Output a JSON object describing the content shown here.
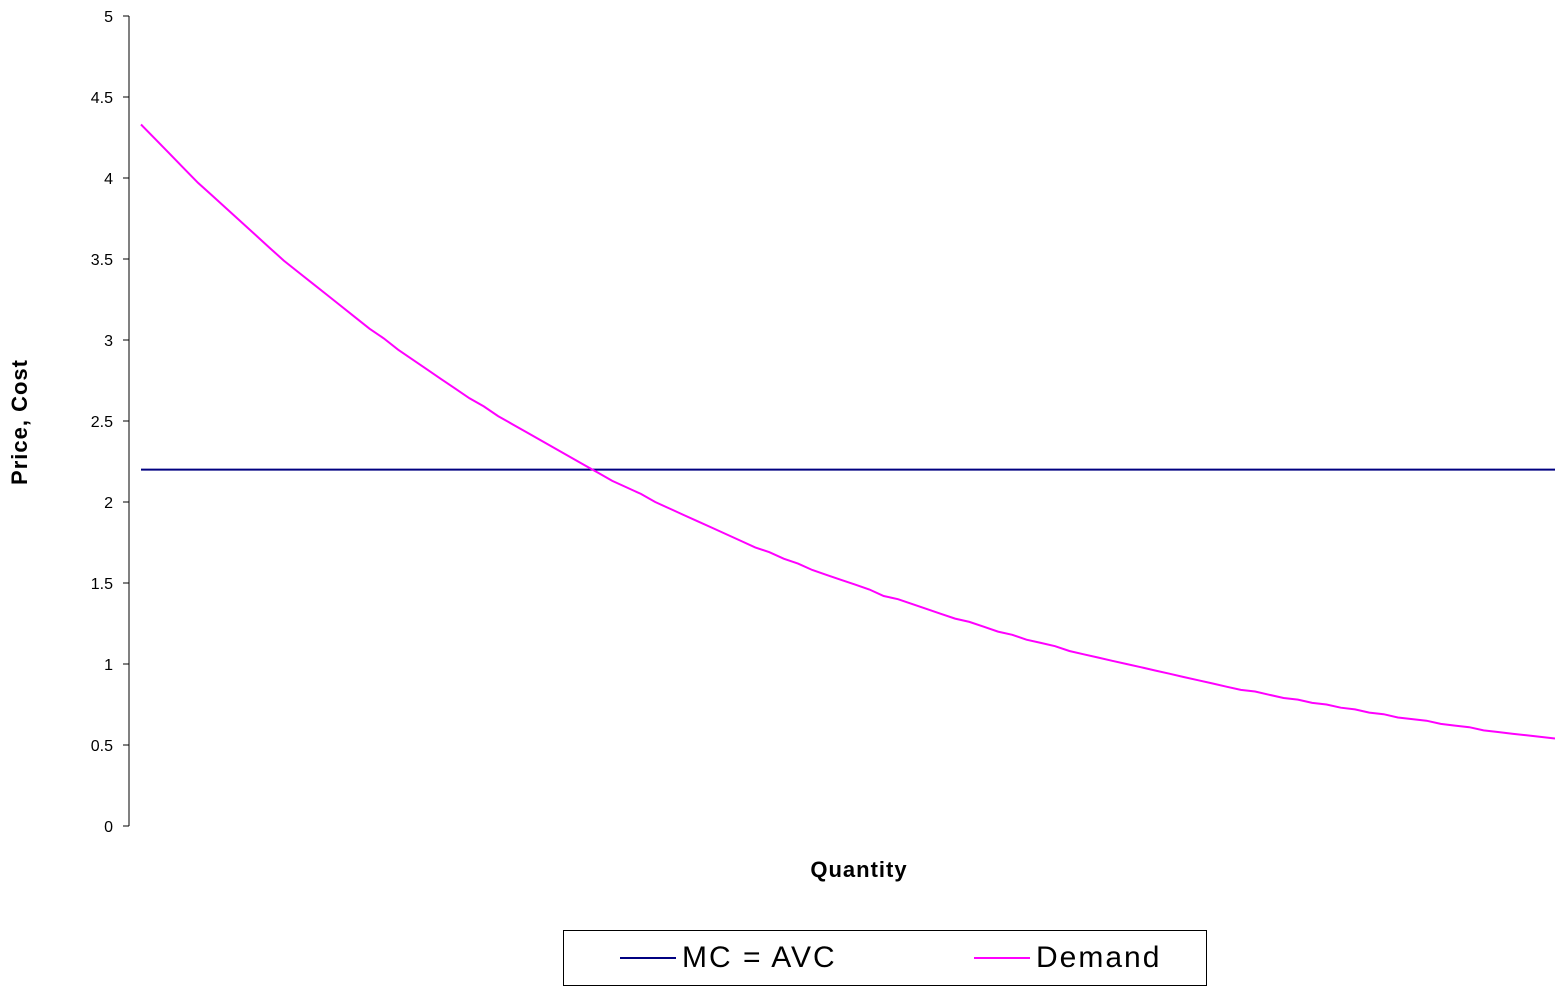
{
  "chart_data": {
    "type": "line",
    "title": "",
    "xlabel": "Quantity",
    "ylabel": "Price, Cost",
    "ylim": [
      0,
      5
    ],
    "yticks": [
      "0",
      "0.5",
      "1",
      "1.5",
      "2",
      "2.5",
      "3",
      "3.5",
      "4",
      "4.5",
      "5"
    ],
    "x": [
      1,
      2,
      3,
      4,
      5,
      6,
      7,
      8,
      9,
      10,
      11,
      12,
      13,
      14,
      15,
      16,
      17,
      18,
      19,
      20,
      21,
      22,
      23,
      24,
      25,
      26,
      27,
      28,
      29,
      30,
      31,
      32,
      33,
      34,
      35,
      36,
      37,
      38,
      39,
      40,
      41,
      42,
      43,
      44,
      45,
      46,
      47,
      48,
      49,
      50,
      51,
      52,
      53,
      54,
      55,
      56,
      57,
      58,
      59,
      60,
      61,
      62,
      63,
      64,
      65,
      66,
      67,
      68,
      69,
      70,
      71,
      72,
      73,
      74,
      75,
      76,
      77,
      78,
      79,
      80,
      81,
      82,
      83,
      84,
      85,
      86,
      87,
      88,
      89,
      90,
      91,
      92,
      93,
      94,
      95,
      96,
      97,
      98,
      99,
      100
    ],
    "grid": false,
    "legend_position": "bottom",
    "series": [
      {
        "name": "MC = AVC",
        "color": "#000080",
        "values": [
          2.2,
          2.2,
          2.2,
          2.2,
          2.2,
          2.2,
          2.2,
          2.2,
          2.2,
          2.2,
          2.2,
          2.2,
          2.2,
          2.2,
          2.2,
          2.2,
          2.2,
          2.2,
          2.2,
          2.2,
          2.2,
          2.2,
          2.2,
          2.2,
          2.2,
          2.2,
          2.2,
          2.2,
          2.2,
          2.2,
          2.2,
          2.2,
          2.2,
          2.2,
          2.2,
          2.2,
          2.2,
          2.2,
          2.2,
          2.2,
          2.2,
          2.2,
          2.2,
          2.2,
          2.2,
          2.2,
          2.2,
          2.2,
          2.2,
          2.2,
          2.2,
          2.2,
          2.2,
          2.2,
          2.2,
          2.2,
          2.2,
          2.2,
          2.2,
          2.2,
          2.2,
          2.2,
          2.2,
          2.2,
          2.2,
          2.2,
          2.2,
          2.2,
          2.2,
          2.2,
          2.2,
          2.2,
          2.2,
          2.2,
          2.2,
          2.2,
          2.2,
          2.2,
          2.2,
          2.2,
          2.2,
          2.2,
          2.2,
          2.2,
          2.2,
          2.2,
          2.2,
          2.2,
          2.2,
          2.2,
          2.2,
          2.2,
          2.2,
          2.2,
          2.2,
          2.2,
          2.2,
          2.2,
          2.2,
          2.2
        ]
      },
      {
        "name": "Demand",
        "color": "#ff00ff",
        "values": [
          4.33,
          4.24,
          4.15,
          4.06,
          3.97,
          3.89,
          3.81,
          3.73,
          3.65,
          3.57,
          3.49,
          3.42,
          3.35,
          3.28,
          3.21,
          3.14,
          3.07,
          3.01,
          2.94,
          2.88,
          2.82,
          2.76,
          2.7,
          2.64,
          2.59,
          2.53,
          2.48,
          2.43,
          2.38,
          2.33,
          2.28,
          2.23,
          2.18,
          2.13,
          2.09,
          2.05,
          2.0,
          1.96,
          1.92,
          1.88,
          1.84,
          1.8,
          1.76,
          1.72,
          1.69,
          1.65,
          1.62,
          1.58,
          1.55,
          1.52,
          1.49,
          1.46,
          1.42,
          1.4,
          1.37,
          1.34,
          1.31,
          1.28,
          1.26,
          1.23,
          1.2,
          1.18,
          1.15,
          1.13,
          1.11,
          1.08,
          1.06,
          1.04,
          1.02,
          1.0,
          0.98,
          0.96,
          0.94,
          0.92,
          0.9,
          0.88,
          0.86,
          0.84,
          0.83,
          0.81,
          0.79,
          0.78,
          0.76,
          0.75,
          0.73,
          0.72,
          0.7,
          0.69,
          0.67,
          0.66,
          0.65,
          0.63,
          0.62,
          0.61,
          0.59,
          0.58,
          0.57,
          0.56,
          0.55,
          0.54
        ]
      }
    ]
  }
}
